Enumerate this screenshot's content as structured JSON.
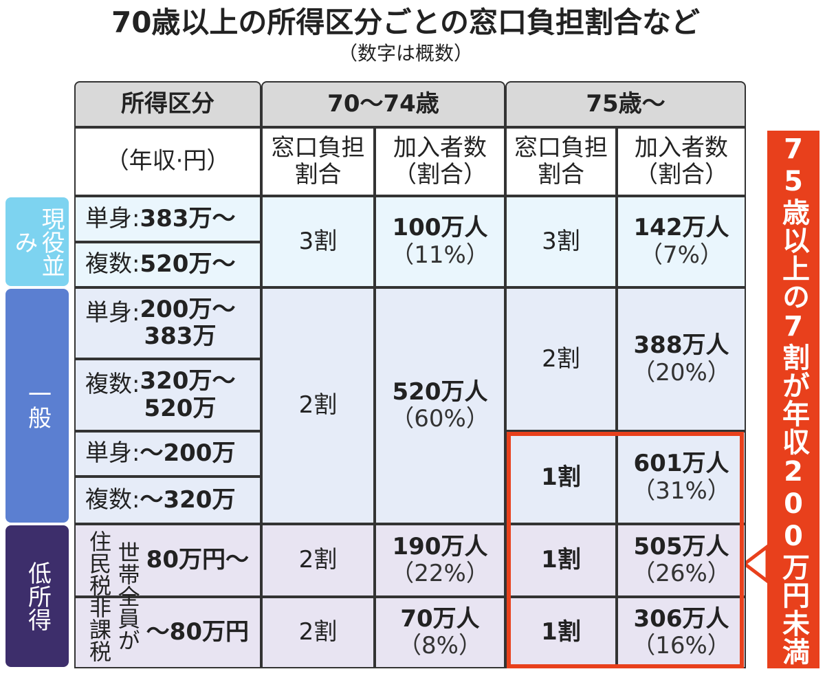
{
  "title": "70歳以上の所得区分ごとの窓口負担割合など",
  "subtitle": "（数字は概数）",
  "header": {
    "income": "所得区分",
    "income_unit": "（年収·円）",
    "age1": "70〜74歳",
    "age2": "75歳〜",
    "cols": [
      [
        "窓口負担",
        "割合"
      ],
      [
        "加入者数",
        "（割合）"
      ],
      [
        "窓口負担",
        "割合"
      ],
      [
        "加入者数",
        "（割合）"
      ]
    ]
  },
  "groups": [
    {
      "label": "現役並み",
      "rows": [
        {
          "prefix": "単身:",
          "value": [
            "383万〜"
          ]
        },
        {
          "prefix": "複数:",
          "value": [
            "520万〜"
          ]
        }
      ]
    },
    {
      "label": "一般",
      "rows": [
        {
          "prefix": "単身:",
          "value": [
            "200万〜",
            "383万"
          ]
        },
        {
          "prefix": "複数:",
          "value": [
            "320万〜",
            "520万"
          ]
        },
        {
          "prefix": "単身:",
          "value": [
            "〜200万"
          ]
        },
        {
          "prefix": "複数:",
          "value": [
            "〜320万"
          ]
        }
      ]
    },
    {
      "label": "低所得",
      "note": [
        "世帯全員が",
        "住民税非課税"
      ],
      "rows": [
        {
          "value": [
            "80万円〜"
          ]
        },
        {
          "value": [
            "〜80万円"
          ]
        }
      ]
    }
  ],
  "cells": [
    [
      "3割"
    ],
    [
      "100万人",
      "（11%）"
    ],
    [
      "3割"
    ],
    [
      "142万人",
      "（7%）"
    ],
    [
      "2割"
    ],
    [
      "520万人",
      "（60%）"
    ],
    [
      "2割"
    ],
    [
      "388万人",
      "（20%）"
    ],
    [
      "1割"
    ],
    [
      "601万人",
      "（31%）"
    ],
    [
      "2割"
    ],
    [
      "190万人",
      "（22%）"
    ],
    [
      "1割"
    ],
    [
      "505万人",
      "（26%）"
    ],
    [
      "2割"
    ],
    [
      "70万人",
      "（8%）"
    ],
    [
      "1割"
    ],
    [
      "306万人",
      "（16%）"
    ]
  ],
  "callout": "75歳以上の7割が年収200万円未満"
}
